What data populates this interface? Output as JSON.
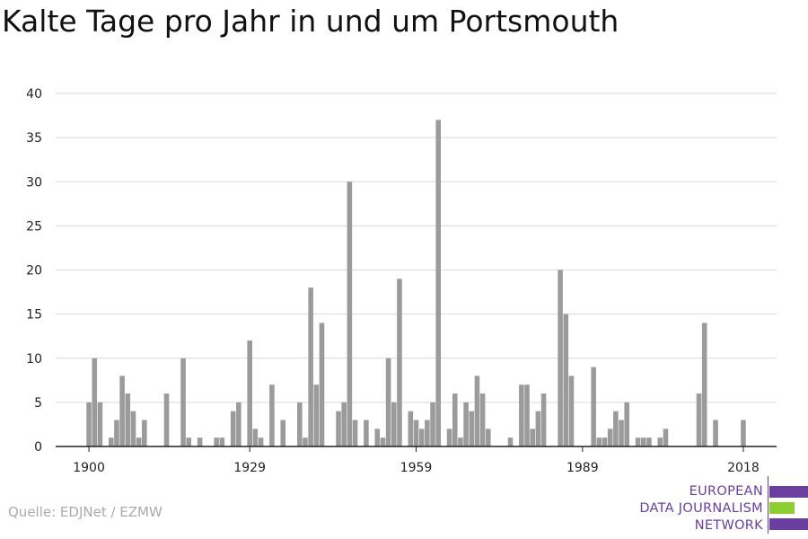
{
  "title": "Kalte Tage pro Jahr in und um Portsmouth",
  "source": "Quelle: EDJNet / EZMW",
  "logo": {
    "lines": [
      "EUROPEAN",
      "DATA JOURNALISM",
      "NETWORK"
    ],
    "colors": {
      "purple": "#6b3fa0",
      "green": "#8ccf2e"
    }
  },
  "colors": {
    "bar": "#9b9b9b",
    "grid": "#d9d9d9",
    "axis": "#222222"
  },
  "chart_data": {
    "type": "bar",
    "title": "Kalte Tage pro Jahr in und um Portsmouth",
    "xlabel": "",
    "ylabel": "",
    "x_ticks": [
      1900,
      1929,
      1959,
      1989,
      2018
    ],
    "y_ticks": [
      0,
      5,
      10,
      15,
      20,
      25,
      30,
      35,
      40
    ],
    "xlim": [
      1894,
      2024
    ],
    "ylim": [
      0,
      40
    ],
    "grid": true,
    "x": [
      1900,
      1901,
      1902,
      1904,
      1905,
      1906,
      1907,
      1908,
      1909,
      1910,
      1914,
      1917,
      1918,
      1920,
      1923,
      1924,
      1926,
      1927,
      1929,
      1930,
      1931,
      1933,
      1935,
      1938,
      1939,
      1940,
      1941,
      1942,
      1945,
      1946,
      1947,
      1948,
      1950,
      1952,
      1953,
      1954,
      1955,
      1956,
      1958,
      1959,
      1960,
      1961,
      1962,
      1963,
      1965,
      1966,
      1967,
      1968,
      1969,
      1970,
      1971,
      1972,
      1976,
      1978,
      1979,
      1980,
      1981,
      1982,
      1985,
      1986,
      1987,
      1991,
      1992,
      1993,
      1994,
      1995,
      1996,
      1997,
      1999,
      2000,
      2001,
      2003,
      2004,
      2010,
      2011,
      2013,
      2018
    ],
    "values": [
      5,
      10,
      5,
      1,
      3,
      8,
      6,
      4,
      1,
      3,
      6,
      10,
      1,
      1,
      1,
      1,
      4,
      5,
      12,
      2,
      1,
      7,
      3,
      5,
      1,
      18,
      7,
      14,
      4,
      5,
      30,
      3,
      3,
      2,
      1,
      10,
      5,
      19,
      4,
      3,
      2,
      3,
      5,
      37,
      2,
      6,
      1,
      5,
      4,
      8,
      6,
      2,
      1,
      7,
      7,
      2,
      4,
      6,
      20,
      15,
      8,
      9,
      1,
      1,
      2,
      4,
      3,
      5,
      1,
      1,
      1,
      1,
      2,
      6,
      14,
      3,
      3
    ]
  }
}
